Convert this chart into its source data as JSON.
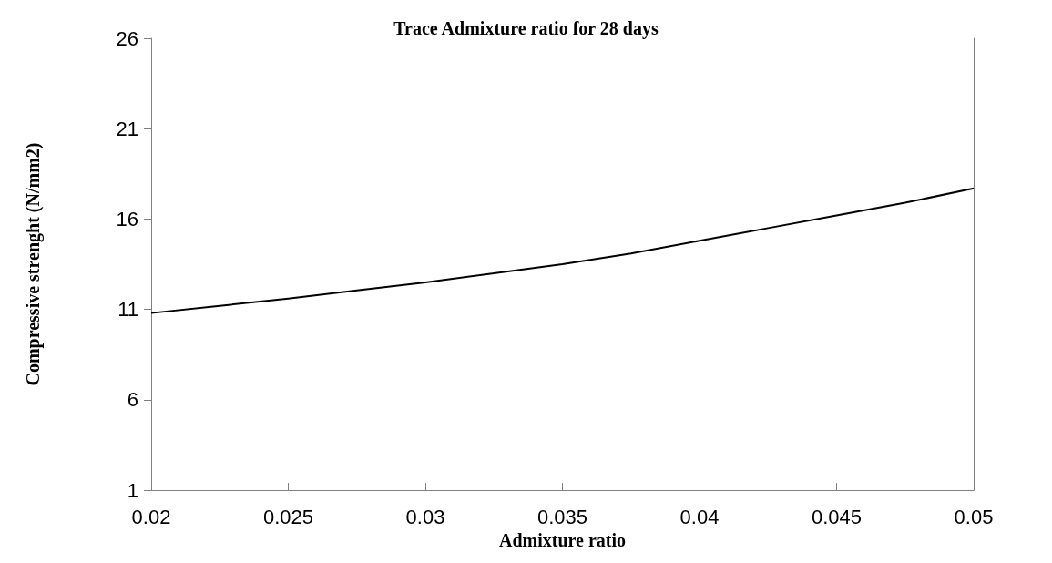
{
  "chart_data": {
    "type": "line",
    "title": "Trace Admixture ratio for 28 days",
    "xlabel": "Admixture ratio",
    "ylabel": "Compressive strenght (N/mm2)",
    "x": [
      0.02,
      0.0225,
      0.025,
      0.0275,
      0.03,
      0.0325,
      0.035,
      0.0375,
      0.04,
      0.0425,
      0.045,
      0.0475,
      0.05
    ],
    "series": [
      {
        "color": "#000000",
        "values": [
          10.8,
          11.2,
          11.6,
          12.05,
          12.5,
          13.0,
          13.5,
          14.1,
          14.8,
          15.5,
          16.2,
          16.9,
          17.7
        ]
      }
    ],
    "xlim": [
      0.02,
      0.05
    ],
    "xticks": [
      0.02,
      0.025,
      0.03,
      0.035,
      0.04,
      0.045,
      0.05
    ],
    "ylim": [
      1,
      26
    ],
    "yticks": [
      1,
      6,
      11,
      16,
      21,
      26
    ],
    "grid": false,
    "marker": "none",
    "line_style": "solid"
  }
}
